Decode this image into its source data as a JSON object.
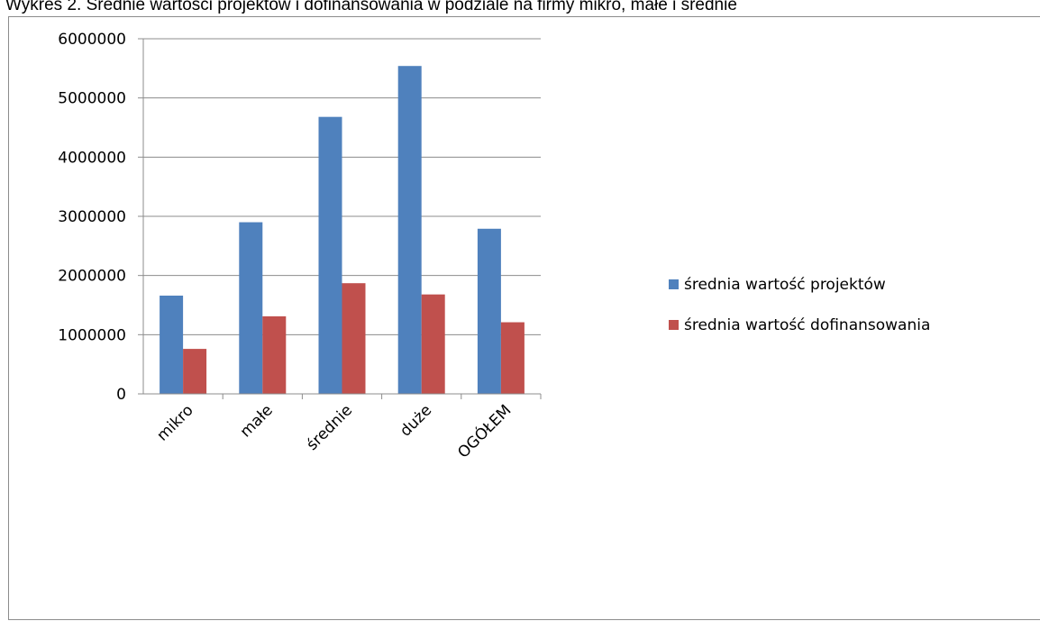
{
  "page": {
    "title": "Wykres 2. Średnie wartości projektów i dofinansowania w podziale na firmy mikro, małe i średnie"
  },
  "chart_data": {
    "type": "bar",
    "title": "",
    "xlabel": "",
    "ylabel": "",
    "categories": [
      "mikro",
      "małe",
      "średnie",
      "duże",
      "OGÓŁEM"
    ],
    "series": [
      {
        "name": "średnia wartość projektów",
        "color": "#4f81bd",
        "values": [
          1660000,
          2900000,
          4680000,
          5540000,
          2790000
        ]
      },
      {
        "name": "średnia wartość dofinansowania",
        "color": "#c0504d",
        "values": [
          760000,
          1310000,
          1870000,
          1680000,
          1210000
        ]
      }
    ],
    "ylim": [
      0,
      6000000
    ],
    "yticks": [
      0,
      1000000,
      2000000,
      3000000,
      4000000,
      5000000,
      6000000
    ],
    "ytick_labels": [
      "0",
      "1000000",
      "2000000",
      "3000000",
      "4000000",
      "5000000",
      "6000000"
    ],
    "grid": true,
    "legend_position": "right"
  }
}
